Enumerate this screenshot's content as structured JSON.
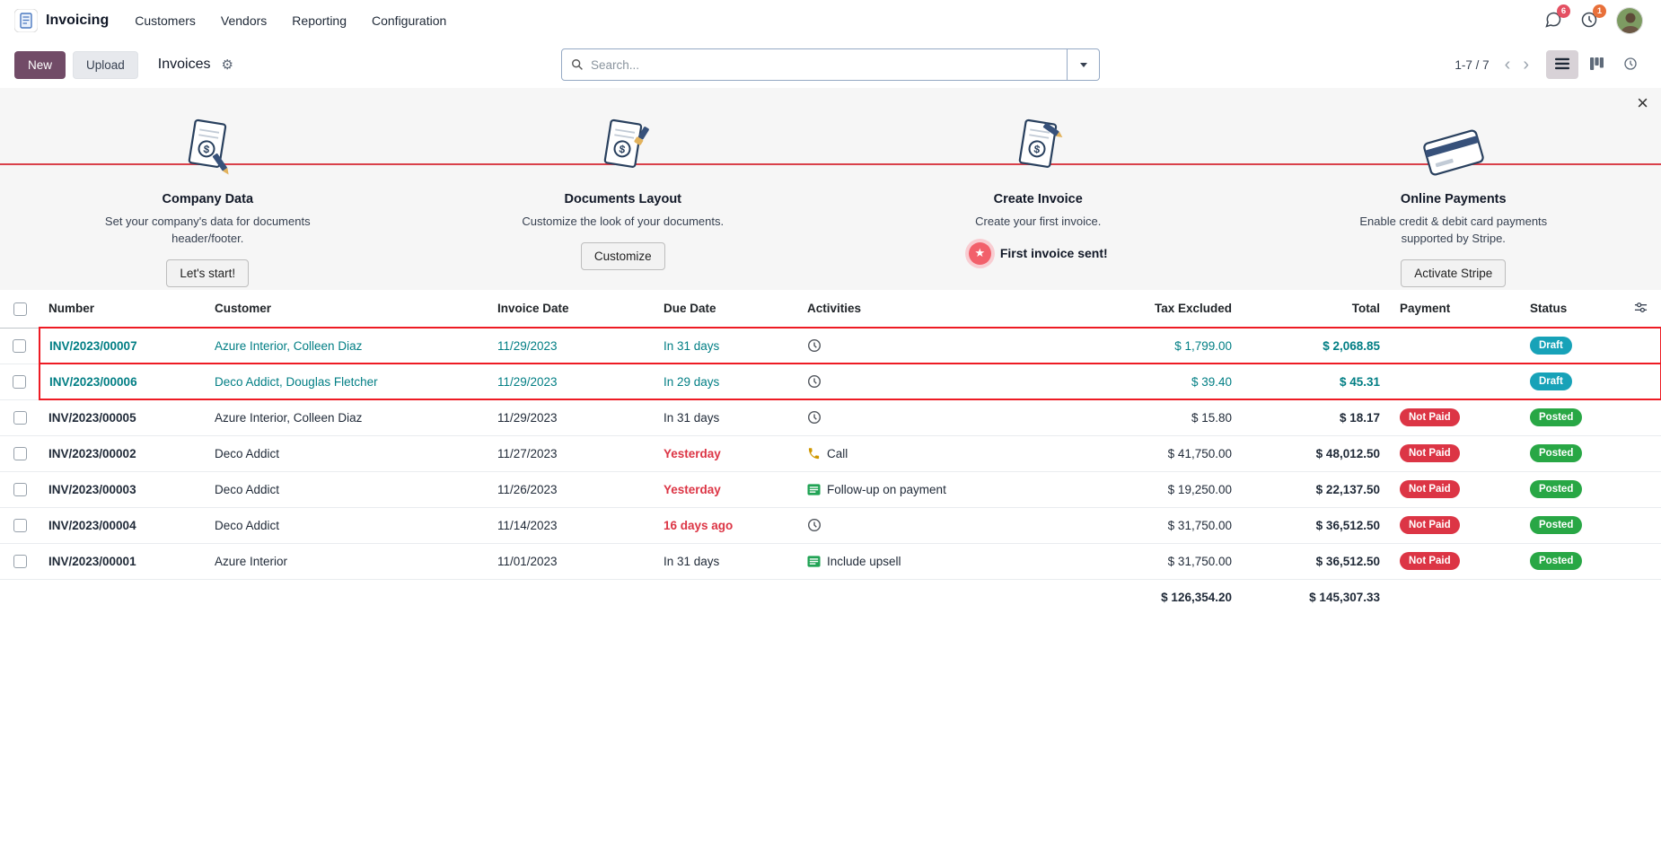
{
  "colors": {
    "primary": "#714B67",
    "draft_badge": "#17a2b8",
    "posted_badge": "#28a745",
    "not_paid_badge": "#dc3545",
    "highlight_outline": "#ee1b24",
    "draft_text": "#017e84",
    "overdue_text": "#dc3545"
  },
  "nav": {
    "app_name": "Invoicing",
    "menus": [
      {
        "label": "Customers"
      },
      {
        "label": "Vendors"
      },
      {
        "label": "Reporting"
      },
      {
        "label": "Configuration"
      }
    ],
    "messages_badge": "6",
    "activities_badge": "1"
  },
  "control": {
    "new_label": "New",
    "upload_label": "Upload",
    "breadcrumb": "Invoices",
    "search_placeholder": "Search...",
    "pager": "1-7 / 7"
  },
  "onboarding": {
    "steps": [
      {
        "title": "Company Data",
        "description": "Set your company's data for documents header/footer.",
        "button": "Let's start!"
      },
      {
        "title": "Documents Layout",
        "description": "Customize the look of your documents.",
        "button": "Customize"
      },
      {
        "title": "Create Invoice",
        "description": "Create your first invoice.",
        "done_label": "First invoice sent!"
      },
      {
        "title": "Online Payments",
        "description": "Enable credit & debit card payments supported by Stripe.",
        "button": "Activate Stripe"
      }
    ]
  },
  "table": {
    "headers": [
      "Number",
      "Customer",
      "Invoice Date",
      "Due Date",
      "Activities",
      "Tax Excluded",
      "Total",
      "Payment",
      "Status"
    ],
    "rows": [
      {
        "number": "INV/2023/00007",
        "customer": "Azure Interior, Colleen Diaz",
        "invoice_date": "11/29/2023",
        "due_date": "In 31 days",
        "overdue": false,
        "activity_icon": "clock-icon",
        "activity_label": "",
        "tax_excluded": "$ 1,799.00",
        "total": "$ 2,068.85",
        "payment": "",
        "status": "Draft",
        "status_type": "draft",
        "highlighted": true
      },
      {
        "number": "INV/2023/00006",
        "customer": "Deco Addict, Douglas Fletcher",
        "invoice_date": "11/29/2023",
        "due_date": "In 29 days",
        "overdue": false,
        "activity_icon": "clock-icon",
        "activity_label": "",
        "tax_excluded": "$ 39.40",
        "total": "$ 45.31",
        "payment": "",
        "status": "Draft",
        "status_type": "draft",
        "highlighted": true
      },
      {
        "number": "INV/2023/00005",
        "customer": "Azure Interior, Colleen Diaz",
        "invoice_date": "11/29/2023",
        "due_date": "In 31 days",
        "overdue": false,
        "activity_icon": "clock-icon",
        "activity_label": "",
        "tax_excluded": "$ 15.80",
        "total": "$ 18.17",
        "payment": "Not Paid",
        "status": "Posted",
        "status_type": "posted",
        "highlighted": false
      },
      {
        "number": "INV/2023/00002",
        "customer": "Deco Addict",
        "invoice_date": "11/27/2023",
        "due_date": "Yesterday",
        "overdue": true,
        "activity_icon": "phone-icon",
        "activity_label": "Call",
        "tax_excluded": "$ 41,750.00",
        "total": "$ 48,012.50",
        "payment": "Not Paid",
        "status": "Posted",
        "status_type": "posted",
        "highlighted": false
      },
      {
        "number": "INV/2023/00003",
        "customer": "Deco Addict",
        "invoice_date": "11/26/2023",
        "due_date": "Yesterday",
        "overdue": true,
        "activity_icon": "list-icon",
        "activity_label": "Follow-up on payment",
        "tax_excluded": "$ 19,250.00",
        "total": "$ 22,137.50",
        "payment": "Not Paid",
        "status": "Posted",
        "status_type": "posted",
        "highlighted": false
      },
      {
        "number": "INV/2023/00004",
        "customer": "Deco Addict",
        "invoice_date": "11/14/2023",
        "due_date": "16 days ago",
        "overdue": true,
        "activity_icon": "clock-icon",
        "activity_label": "",
        "tax_excluded": "$ 31,750.00",
        "total": "$ 36,512.50",
        "payment": "Not Paid",
        "status": "Posted",
        "status_type": "posted",
        "highlighted": false
      },
      {
        "number": "INV/2023/00001",
        "customer": "Azure Interior",
        "invoice_date": "11/01/2023",
        "due_date": "In 31 days",
        "overdue": false,
        "activity_icon": "list-icon",
        "activity_label": "Include upsell",
        "tax_excluded": "$ 31,750.00",
        "total": "$ 36,512.50",
        "payment": "Not Paid",
        "status": "Posted",
        "status_type": "posted",
        "highlighted": false
      }
    ],
    "totals": {
      "tax_excluded": "$ 126,354.20",
      "total": "$ 145,307.33"
    }
  }
}
